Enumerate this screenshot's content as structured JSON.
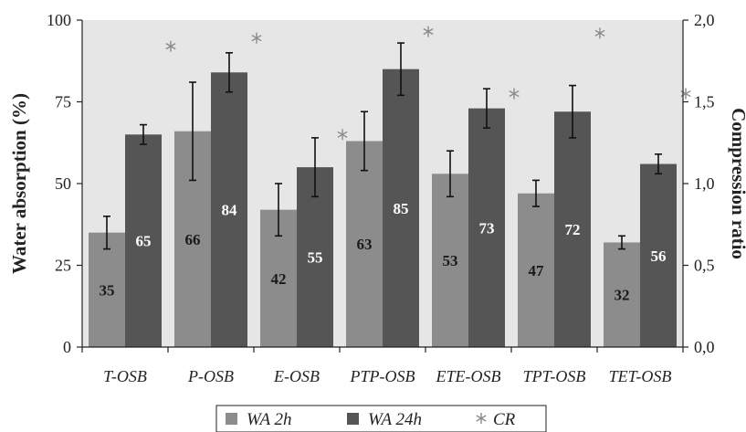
{
  "chart_data": {
    "type": "bar",
    "categories": [
      "T-OSB",
      "P-OSB",
      "E-OSB",
      "PTP-OSB",
      "ETE-OSB",
      "TPT-OSB",
      "TET-OSB"
    ],
    "series": [
      {
        "name": "WA 2h",
        "values": [
          35,
          66,
          42,
          63,
          53,
          47,
          32
        ],
        "error": [
          5.0,
          15.0,
          8.0,
          9.0,
          7.0,
          4.0,
          2.0
        ],
        "color": "#8c8c8c",
        "label_color": "#1a1a1a"
      },
      {
        "name": "WA 24h",
        "values": [
          65,
          84,
          55,
          85,
          73,
          72,
          56
        ],
        "error": [
          3.0,
          6.0,
          9.0,
          8.0,
          6.0,
          8.0,
          3.0
        ],
        "color": "#555555",
        "label_color": "#ffffff"
      }
    ],
    "secondary_series": {
      "name": "CR",
      "values": [
        1.84,
        1.89,
        1.3,
        1.93,
        1.55,
        1.92,
        1.55
      ],
      "marker": "asterisk",
      "color": "#8a8a8a"
    },
    "data_labels": [
      [
        "35",
        "66",
        "42",
        "63",
        "53",
        "47",
        "32"
      ],
      [
        "65",
        "84",
        "55",
        "85",
        "73",
        "72",
        "56"
      ]
    ],
    "ylabel": "Water absorption (%)",
    "ylim": [
      0,
      100
    ],
    "yticks": [
      "0",
      "25",
      "50",
      "75",
      "100"
    ],
    "y2label": "Compression ratio",
    "y2lim": [
      0,
      2.0
    ],
    "y2ticks": [
      "0,0",
      "0,5",
      "1,0",
      "1,5",
      "2,0"
    ],
    "legend": {
      "position": "bottom",
      "entries": [
        "WA  2h",
        "WA  24h",
        "CR"
      ]
    },
    "plot_background": "#e6e6e6",
    "grid": false
  }
}
